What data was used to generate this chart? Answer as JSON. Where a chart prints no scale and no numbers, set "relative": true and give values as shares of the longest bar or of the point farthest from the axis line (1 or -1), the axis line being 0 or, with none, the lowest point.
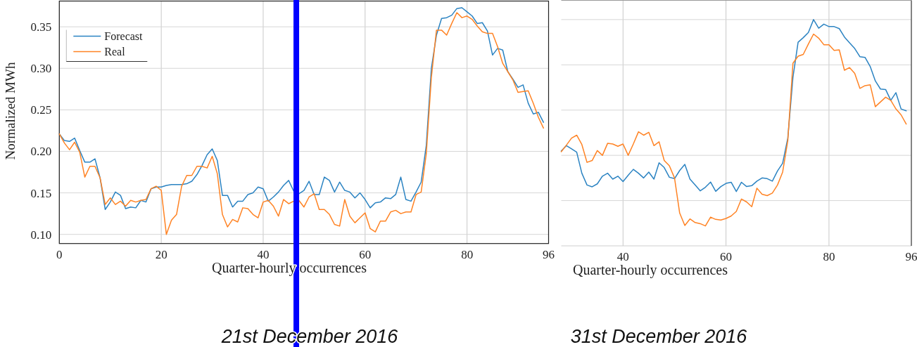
{
  "chart_data": [
    {
      "type": "line",
      "title": "21st December 2016",
      "xlabel": "Quarter-hourly occurrences",
      "ylabel": "Normalized MWh",
      "x": [
        0,
        1,
        2,
        3,
        4,
        5,
        6,
        7,
        8,
        9,
        10,
        11,
        12,
        13,
        14,
        15,
        16,
        17,
        18,
        19,
        20,
        21,
        22,
        23,
        24,
        25,
        26,
        27,
        28,
        29,
        30,
        31,
        32,
        33,
        34,
        35,
        36,
        37,
        38,
        39,
        40,
        41,
        42,
        43,
        44,
        45,
        46,
        47,
        48,
        49,
        50,
        51,
        52,
        53,
        54,
        55,
        56,
        57,
        58,
        59,
        60,
        61,
        62,
        63,
        64,
        65,
        66,
        67,
        68,
        69,
        70,
        71,
        72,
        73,
        74,
        75,
        76,
        77,
        78,
        79,
        80,
        81,
        82,
        83,
        84,
        85,
        86,
        87,
        88,
        89,
        90,
        91,
        92,
        93,
        94,
        95
      ],
      "xlim": [
        0,
        96
      ],
      "xticks": [
        0,
        20,
        40,
        60,
        80,
        96
      ],
      "ylim": [
        0.089,
        0.381
      ],
      "yticks": [
        {
          "value": 0.1,
          "label": "0.10"
        },
        0.15,
        {
          "value": 0.2,
          "label": "0.20"
        },
        0.25,
        {
          "value": 0.3,
          "label": "0.30"
        },
        0.35
      ],
      "grid": true,
      "legend": "top left",
      "series": [
        {
          "name": "Forecast",
          "color": "#2b83c2",
          "values": [
            0.221,
            0.213,
            0.212,
            0.216,
            0.201,
            0.187,
            0.187,
            0.191,
            0.168,
            0.13,
            0.139,
            0.151,
            0.147,
            0.131,
            0.133,
            0.132,
            0.141,
            0.139,
            0.155,
            0.157,
            0.157,
            0.159,
            0.16,
            0.16,
            0.16,
            0.161,
            0.164,
            0.172,
            0.183,
            0.196,
            0.203,
            0.189,
            0.147,
            0.147,
            0.133,
            0.14,
            0.14,
            0.148,
            0.15,
            0.157,
            0.155,
            0.14,
            0.145,
            0.151,
            0.159,
            0.165,
            0.152,
            0.149,
            0.153,
            0.164,
            0.148,
            0.148,
            0.169,
            0.165,
            0.151,
            0.163,
            0.153,
            0.151,
            0.144,
            0.15,
            0.142,
            0.132,
            0.138,
            0.139,
            0.144,
            0.143,
            0.148,
            0.169,
            0.142,
            0.14,
            0.151,
            0.163,
            0.207,
            0.3,
            0.34,
            0.36,
            0.361,
            0.364,
            0.372,
            0.373,
            0.368,
            0.363,
            0.354,
            0.355,
            0.345,
            0.316,
            0.324,
            0.322,
            0.296,
            0.287,
            0.277,
            0.28,
            0.258,
            0.245,
            0.247,
            0.235
          ]
        },
        {
          "name": "Real",
          "color": "#ff8324",
          "values": [
            0.221,
            0.21,
            0.202,
            0.211,
            0.199,
            0.169,
            0.182,
            0.182,
            0.168,
            0.136,
            0.144,
            0.136,
            0.14,
            0.134,
            0.141,
            0.139,
            0.141,
            0.142,
            0.155,
            0.158,
            0.153,
            0.1,
            0.117,
            0.124,
            0.158,
            0.171,
            0.171,
            0.182,
            0.182,
            0.18,
            0.194,
            0.173,
            0.124,
            0.109,
            0.118,
            0.115,
            0.132,
            0.131,
            0.124,
            0.12,
            0.139,
            0.141,
            0.134,
            0.122,
            0.142,
            0.137,
            0.14,
            0.141,
            0.133,
            0.145,
            0.149,
            0.13,
            0.13,
            0.124,
            0.112,
            0.11,
            0.142,
            0.122,
            0.114,
            0.12,
            0.126,
            0.107,
            0.103,
            0.116,
            0.116,
            0.127,
            0.129,
            0.125,
            0.127,
            0.127,
            0.148,
            0.151,
            0.197,
            0.289,
            0.346,
            0.346,
            0.34,
            0.354,
            0.367,
            0.361,
            0.363,
            0.359,
            0.351,
            0.344,
            0.342,
            0.342,
            0.326,
            0.306,
            0.296,
            0.286,
            0.271,
            0.272,
            0.273,
            0.258,
            0.241,
            0.228
          ]
        }
      ],
      "ref_lines": [
        {
          "axis": "x",
          "value": 46.5,
          "color": "#0000ff"
        }
      ]
    },
    {
      "type": "line",
      "title": "31st December 2016",
      "xlabel": "Quarter-hourly occurrences",
      "x": [
        28,
        29,
        30,
        31,
        32,
        33,
        34,
        35,
        36,
        37,
        38,
        39,
        40,
        41,
        42,
        43,
        44,
        45,
        46,
        47,
        48,
        49,
        50,
        51,
        52,
        53,
        54,
        55,
        56,
        57,
        58,
        59,
        60,
        61,
        62,
        63,
        64,
        65,
        66,
        67,
        68,
        69,
        70,
        71,
        72,
        73,
        74,
        75,
        76,
        77,
        78,
        79,
        80,
        81,
        82,
        83,
        84,
        85,
        86,
        87,
        88,
        89,
        90,
        91,
        92,
        93,
        94,
        95
      ],
      "xlim": [
        28,
        96
      ],
      "xticks": [
        40,
        60,
        80,
        96
      ],
      "relative": true,
      "grid": true,
      "series": [
        {
          "color": "#2b83c2",
          "values": [
            0.419,
            0.443,
            0.429,
            0.414,
            0.321,
            0.269,
            0.261,
            0.274,
            0.308,
            0.321,
            0.295,
            0.308,
            0.284,
            0.312,
            0.338,
            0.321,
            0.3,
            0.326,
            0.295,
            0.367,
            0.346,
            0.303,
            0.297,
            0.333,
            0.36,
            0.295,
            0.269,
            0.243,
            0.259,
            0.282,
            0.241,
            0.262,
            0.276,
            0.281,
            0.24,
            0.281,
            0.262,
            0.266,
            0.286,
            0.3,
            0.297,
            0.286,
            0.331,
            0.365,
            0.476,
            0.745,
            0.9,
            0.92,
            0.943,
            1,
            0.962,
            0.98,
            0.969,
            0.969,
            0.96,
            0.923,
            0.897,
            0.872,
            0.836,
            0.833,
            0.793,
            0.729,
            0.693,
            0.691,
            0.643,
            0.677,
            0.605,
            0.597
          ]
        },
        {
          "color": "#ff8324",
          "values": [
            0.416,
            0.445,
            0.476,
            0.489,
            0.448,
            0.369,
            0.377,
            0.421,
            0.4,
            0.453,
            0.45,
            0.44,
            0.45,
            0.4,
            0.45,
            0.504,
            0.489,
            0.502,
            0.443,
            0.46,
            0.377,
            0.354,
            0.3,
            0.145,
            0.09,
            0.119,
            0.103,
            0.098,
            0.088,
            0.127,
            0.117,
            0.114,
            0.121,
            0.132,
            0.152,
            0.207,
            0.194,
            0.173,
            0.255,
            0.228,
            0.222,
            0.233,
            0.269,
            0.326,
            0.465,
            0.807,
            0.838,
            0.846,
            0.892,
            0.936,
            0.918,
            0.889,
            0.889,
            0.864,
            0.866,
            0.776,
            0.788,
            0.762,
            0.696,
            0.708,
            0.712,
            0.615,
            0.636,
            0.657,
            0.643,
            0.605,
            0.579,
            0.538
          ]
        }
      ]
    }
  ]
}
